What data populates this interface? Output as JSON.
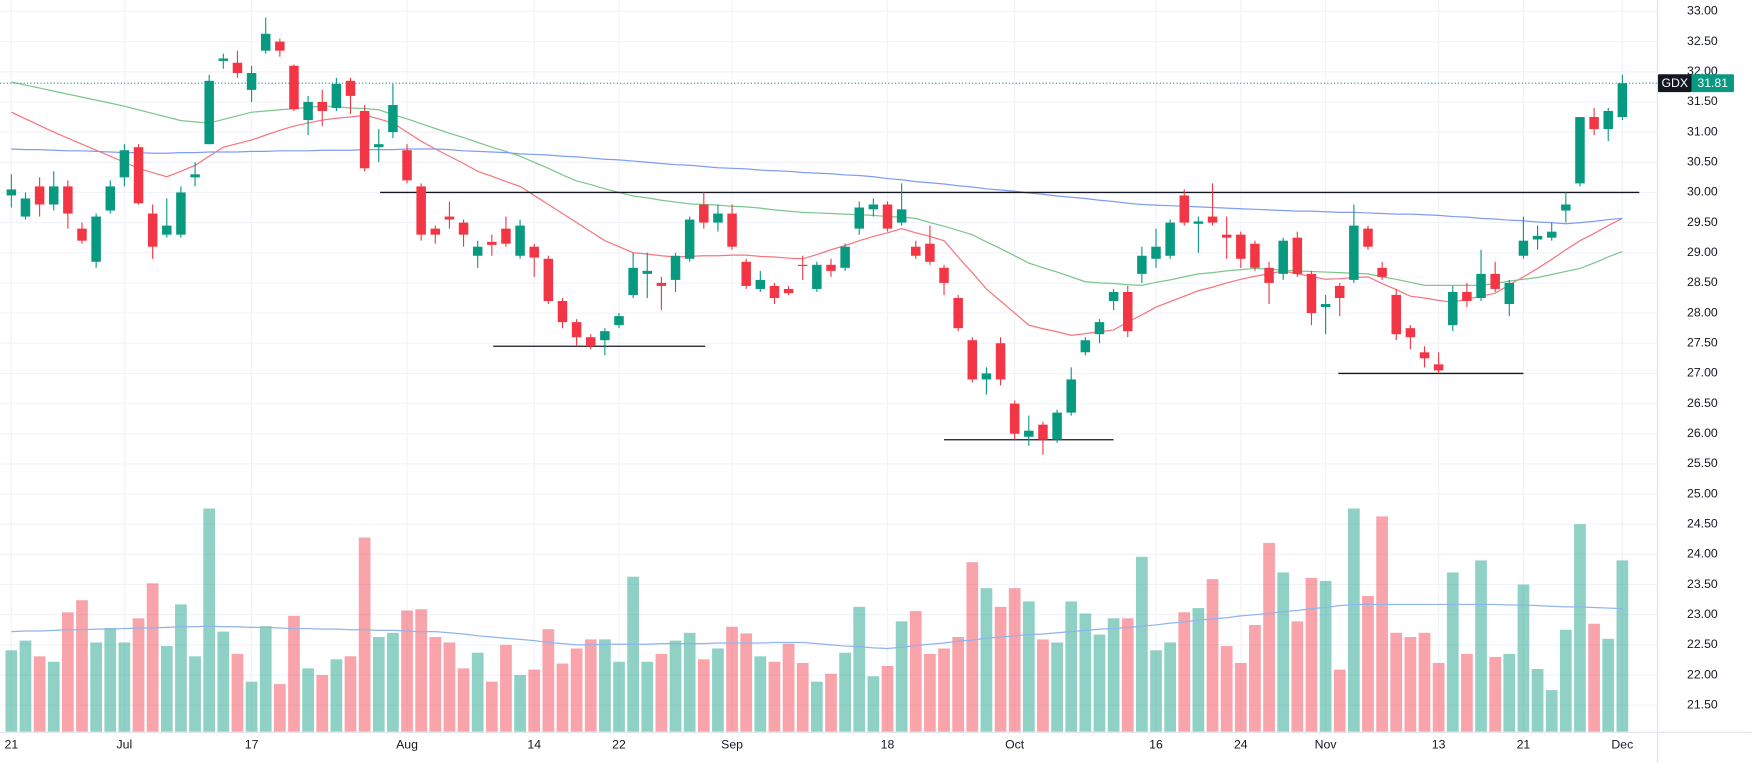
{
  "chart_data": {
    "type": "candlestick",
    "categories": [
      "21",
      null,
      null,
      null,
      null,
      null,
      null,
      null,
      "Jul",
      null,
      null,
      null,
      null,
      null,
      null,
      null,
      null,
      "17",
      null,
      null,
      null,
      null,
      null,
      null,
      null,
      null,
      null,
      null,
      "Aug",
      null,
      null,
      null,
      null,
      null,
      null,
      null,
      null,
      "14",
      null,
      null,
      null,
      null,
      null,
      "22",
      null,
      null,
      null,
      null,
      null,
      null,
      null,
      "Sep",
      null,
      null,
      null,
      null,
      null,
      null,
      null,
      null,
      null,
      null,
      "18",
      null,
      null,
      null,
      null,
      null,
      null,
      null,
      null,
      "Oct",
      null,
      null,
      null,
      null,
      null,
      null,
      null,
      null,
      null,
      "16",
      null,
      null,
      null,
      null,
      null,
      "24",
      null,
      null,
      null,
      null,
      null,
      "Nov",
      null,
      null,
      null,
      null,
      null,
      null,
      null,
      "13",
      null,
      null,
      null,
      null,
      null,
      "21",
      null,
      null,
      null,
      null,
      null,
      null,
      "Dec"
    ],
    "open": [
      29.95,
      29.6,
      30.1,
      29.8,
      30.1,
      29.4,
      28.85,
      29.7,
      30.25,
      30.75,
      29.65,
      29.3,
      29.3,
      30.25,
      30.8,
      32.18,
      32.15,
      31.7,
      32.35,
      32.5,
      32.1,
      31.2,
      31.5,
      31.4,
      31.85,
      31.35,
      30.75,
      31.0,
      30.7,
      30.1,
      29.4,
      29.6,
      29.5,
      28.95,
      29.18,
      29.4,
      28.95,
      29.1,
      28.9,
      28.2,
      27.85,
      27.6,
      27.55,
      27.8,
      28.3,
      28.65,
      28.5,
      28.55,
      28.9,
      29.8,
      29.5,
      29.65,
      28.85,
      28.4,
      28.45,
      28.4,
      28.8,
      28.4,
      28.8,
      28.75,
      29.4,
      29.72,
      29.8,
      29.5,
      29.1,
      29.15,
      28.75,
      28.25,
      27.55,
      26.9,
      27.5,
      26.5,
      25.95,
      26.15,
      25.9,
      26.35,
      27.35,
      27.65,
      28.2,
      28.35,
      28.65,
      28.9,
      28.95,
      29.95,
      29.48,
      29.6,
      29.3,
      29.3,
      29.15,
      28.75,
      28.65,
      29.25,
      28.65,
      28.1,
      28.45,
      28.55,
      29.4,
      28.75,
      28.3,
      27.75,
      27.35,
      27.15,
      27.8,
      28.35,
      28.25,
      28.65,
      28.15,
      28.95,
      29.22,
      29.25,
      29.7,
      30.15,
      31.25,
      31.05,
      31.25
    ],
    "high": [
      30.3,
      30.0,
      30.25,
      30.35,
      30.2,
      29.5,
      29.65,
      30.2,
      30.8,
      30.8,
      29.8,
      29.9,
      30.1,
      30.5,
      31.95,
      32.3,
      32.35,
      32.1,
      32.9,
      32.55,
      32.12,
      31.6,
      31.7,
      31.9,
      31.9,
      31.45,
      31.05,
      31.8,
      30.8,
      30.15,
      29.45,
      29.85,
      29.55,
      29.2,
      29.3,
      29.6,
      29.55,
      29.15,
      28.95,
      28.25,
      27.9,
      27.65,
      27.75,
      28.0,
      29.0,
      29.0,
      28.6,
      29.0,
      29.6,
      30.0,
      29.8,
      29.8,
      28.9,
      28.7,
      28.5,
      28.45,
      28.95,
      28.85,
      28.9,
      29.15,
      29.85,
      29.9,
      29.85,
      30.15,
      29.2,
      29.45,
      28.8,
      28.3,
      27.6,
      27.1,
      27.6,
      26.55,
      26.3,
      26.2,
      26.4,
      27.1,
      27.6,
      27.9,
      28.4,
      28.45,
      29.1,
      29.4,
      29.55,
      30.05,
      29.6,
      30.15,
      29.6,
      29.35,
      29.2,
      28.85,
      29.25,
      29.35,
      28.7,
      28.3,
      28.5,
      29.8,
      29.45,
      28.85,
      28.4,
      27.8,
      27.45,
      27.35,
      28.45,
      28.5,
      29.05,
      28.85,
      28.55,
      29.6,
      29.45,
      29.5,
      30.0,
      31.25,
      31.4,
      31.4,
      31.95
    ],
    "low": [
      29.75,
      29.55,
      29.6,
      29.7,
      29.4,
      29.15,
      28.75,
      29.65,
      30.1,
      29.8,
      28.9,
      29.25,
      29.25,
      30.1,
      30.8,
      32.05,
      31.9,
      31.5,
      32.3,
      32.25,
      31.35,
      30.95,
      31.1,
      31.35,
      31.3,
      30.35,
      30.5,
      30.9,
      30.15,
      29.2,
      29.15,
      29.4,
      29.1,
      28.75,
      28.95,
      29.1,
      28.9,
      28.6,
      28.15,
      27.75,
      27.45,
      27.4,
      27.3,
      27.75,
      28.25,
      28.25,
      28.05,
      28.35,
      28.85,
      29.4,
      29.35,
      29.05,
      28.4,
      28.35,
      28.15,
      28.3,
      28.55,
      28.35,
      28.6,
      28.7,
      29.3,
      29.6,
      29.35,
      29.45,
      28.9,
      28.8,
      28.3,
      27.7,
      26.85,
      26.65,
      26.8,
      25.9,
      25.8,
      25.65,
      25.85,
      26.3,
      27.3,
      27.5,
      28.05,
      27.6,
      28.5,
      28.75,
      28.9,
      29.45,
      29.0,
      29.45,
      28.9,
      28.75,
      28.7,
      28.15,
      28.55,
      28.6,
      27.8,
      27.65,
      27.95,
      28.5,
      29.05,
      28.55,
      27.55,
      27.4,
      27.1,
      27.0,
      27.7,
      28.1,
      28.2,
      28.35,
      27.95,
      28.9,
      29.05,
      29.2,
      29.5,
      30.1,
      30.95,
      30.85,
      31.2
    ],
    "close": [
      30.05,
      29.9,
      29.8,
      30.1,
      29.65,
      29.2,
      29.6,
      30.1,
      30.7,
      29.82,
      29.1,
      29.45,
      30.0,
      30.3,
      31.85,
      32.22,
      31.98,
      31.98,
      32.63,
      32.35,
      31.38,
      31.5,
      31.35,
      31.8,
      31.6,
      30.4,
      30.8,
      31.45,
      30.2,
      29.3,
      29.3,
      29.55,
      29.3,
      29.1,
      29.13,
      29.15,
      29.45,
      28.92,
      28.2,
      27.85,
      27.6,
      27.45,
      27.7,
      27.95,
      28.75,
      28.7,
      28.45,
      28.95,
      29.55,
      29.5,
      29.65,
      29.1,
      28.45,
      28.55,
      28.25,
      28.33,
      28.78,
      28.8,
      28.7,
      29.1,
      29.75,
      29.8,
      29.4,
      29.72,
      28.95,
      28.85,
      28.5,
      27.75,
      26.9,
      27.0,
      26.9,
      26.0,
      26.05,
      25.9,
      26.35,
      26.9,
      27.55,
      27.85,
      28.35,
      27.7,
      28.95,
      29.1,
      29.5,
      29.5,
      29.52,
      29.5,
      29.25,
      28.9,
      28.75,
      28.5,
      29.2,
      28.65,
      28.0,
      28.15,
      28.25,
      29.45,
      29.1,
      28.6,
      27.65,
      27.6,
      27.25,
      27.05,
      28.35,
      28.2,
      28.65,
      28.4,
      28.5,
      29.2,
      29.28,
      29.35,
      29.8,
      31.25,
      31.05,
      31.35,
      31.81
    ],
    "volume": [
      22.41,
      22.57,
      22.31,
      22.22,
      23.04,
      23.24,
      22.54,
      22.78,
      22.54,
      22.94,
      23.52,
      22.48,
      23.17,
      22.31,
      24.76,
      22.72,
      22.35,
      21.89,
      22.81,
      21.85,
      22.98,
      22.11,
      22.0,
      22.26,
      22.31,
      24.28,
      22.63,
      22.7,
      23.07,
      23.09,
      22.63,
      22.54,
      22.11,
      22.37,
      21.89,
      22.5,
      22.0,
      22.09,
      22.76,
      22.19,
      22.44,
      22.59,
      22.59,
      22.22,
      23.63,
      22.22,
      22.35,
      22.57,
      22.7,
      22.26,
      22.44,
      22.8,
      22.69,
      22.31,
      22.22,
      22.52,
      22.2,
      21.89,
      22.02,
      22.37,
      23.13,
      21.98,
      22.15,
      22.89,
      23.06,
      22.35,
      22.44,
      22.63,
      23.87,
      23.44,
      23.13,
      23.44,
      23.22,
      22.59,
      22.54,
      23.22,
      23.02,
      22.67,
      22.94,
      22.94,
      23.96,
      22.41,
      22.54,
      23.04,
      23.11,
      23.59,
      22.48,
      22.2,
      22.83,
      24.19,
      23.7,
      22.89,
      23.61,
      23.56,
      22.09,
      24.76,
      23.31,
      24.63,
      22.7,
      22.63,
      22.7,
      22.2,
      23.7,
      22.35,
      23.9,
      22.3,
      22.35,
      23.5,
      22.1,
      21.75,
      22.75,
      24.5,
      22.85,
      22.6,
      23.9
    ],
    "series": [
      {
        "color": "#f7767e",
        "values": [
          31.33,
          31.22,
          31.11,
          31.0,
          30.9,
          30.8,
          30.7,
          30.6,
          30.5,
          30.4,
          30.33,
          30.26,
          30.35,
          30.45,
          30.6,
          30.75,
          30.81,
          30.87,
          30.95,
          31.03,
          31.1,
          31.15,
          31.2,
          31.23,
          31.25,
          31.28,
          31.22,
          31.15,
          31.0,
          30.85,
          30.72,
          30.6,
          30.48,
          30.35,
          30.27,
          30.18,
          30.1,
          29.95,
          29.8,
          29.65,
          29.5,
          29.35,
          29.2,
          29.1,
          29.0,
          28.98,
          28.95,
          28.93,
          28.94,
          28.95,
          28.95,
          28.96,
          28.96,
          28.94,
          28.93,
          28.91,
          28.9,
          28.97,
          29.05,
          29.12,
          29.2,
          29.27,
          29.33,
          29.4,
          29.33,
          29.27,
          29.2,
          28.93,
          28.67,
          28.4,
          28.2,
          28.0,
          27.8,
          27.74,
          27.69,
          27.63,
          27.66,
          27.69,
          27.72,
          27.85,
          27.97,
          28.1,
          28.19,
          28.28,
          28.37,
          28.43,
          28.5,
          28.56,
          28.61,
          28.65,
          28.7,
          28.65,
          28.61,
          28.56,
          28.57,
          28.59,
          28.6,
          28.49,
          28.39,
          28.28,
          28.25,
          28.21,
          28.18,
          28.23,
          28.28,
          28.33,
          28.47,
          28.6,
          28.74,
          28.89,
          29.05,
          29.2,
          29.32,
          29.45,
          29.57
        ]
      },
      {
        "color": "#7bc68a",
        "values": [
          31.83,
          31.78,
          31.73,
          31.68,
          31.63,
          31.58,
          31.53,
          31.48,
          31.43,
          31.37,
          31.31,
          31.25,
          31.19,
          31.17,
          31.15,
          31.21,
          31.27,
          31.33,
          31.35,
          31.37,
          31.39,
          31.41,
          31.43,
          31.42,
          31.4,
          31.39,
          31.37,
          31.29,
          31.22,
          31.14,
          31.06,
          30.98,
          30.91,
          30.83,
          30.75,
          30.68,
          30.6,
          30.5,
          30.4,
          30.29,
          30.19,
          30.13,
          30.06,
          30.0,
          29.94,
          29.91,
          29.87,
          29.84,
          29.81,
          29.8,
          29.79,
          29.77,
          29.76,
          29.74,
          29.71,
          29.69,
          29.67,
          29.66,
          29.65,
          29.64,
          29.63,
          29.62,
          29.6,
          29.59,
          29.57,
          29.5,
          29.44,
          29.37,
          29.3,
          29.18,
          29.07,
          28.95,
          28.83,
          28.75,
          28.68,
          28.6,
          28.52,
          28.5,
          28.49,
          28.47,
          28.46,
          28.51,
          28.55,
          28.6,
          28.65,
          28.67,
          28.7,
          28.72,
          28.74,
          28.73,
          28.71,
          28.7,
          28.69,
          28.68,
          28.67,
          28.66,
          28.65,
          28.6,
          28.56,
          28.51,
          28.46,
          28.46,
          28.46,
          28.46,
          28.46,
          28.49,
          28.53,
          28.56,
          28.59,
          28.64,
          28.69,
          28.74,
          28.83,
          28.93,
          29.02
        ]
      },
      {
        "color": "#7f9cf5",
        "values": [
          30.72,
          30.71,
          30.71,
          30.7,
          30.69,
          30.69,
          30.68,
          30.67,
          30.66,
          30.66,
          30.65,
          30.65,
          30.66,
          30.66,
          30.67,
          30.67,
          30.67,
          30.68,
          30.68,
          30.69,
          30.69,
          30.69,
          30.7,
          30.7,
          30.7,
          30.71,
          30.71,
          30.71,
          30.72,
          30.72,
          30.72,
          30.71,
          30.69,
          30.68,
          30.67,
          30.66,
          30.64,
          30.63,
          30.62,
          30.6,
          30.59,
          30.57,
          30.55,
          30.54,
          30.52,
          30.5,
          30.48,
          30.46,
          30.45,
          30.43,
          30.41,
          30.4,
          30.39,
          30.37,
          30.36,
          30.35,
          30.33,
          30.32,
          30.31,
          30.29,
          30.28,
          30.26,
          30.23,
          30.21,
          30.18,
          30.16,
          30.14,
          30.11,
          30.09,
          30.06,
          30.04,
          30.02,
          29.99,
          29.97,
          29.94,
          29.92,
          29.9,
          29.87,
          29.85,
          29.82,
          29.8,
          29.79,
          29.78,
          29.77,
          29.76,
          29.75,
          29.74,
          29.73,
          29.72,
          29.71,
          29.7,
          29.69,
          29.69,
          29.68,
          29.67,
          29.67,
          29.66,
          29.65,
          29.64,
          29.64,
          29.63,
          29.62,
          29.6,
          29.59,
          29.57,
          29.56,
          29.54,
          29.53,
          29.51,
          29.5,
          29.48,
          29.5,
          29.52,
          29.55,
          29.57
        ]
      },
      {
        "color": "#8fb3ec",
        "values": [
          22.72,
          22.73,
          22.73,
          22.74,
          22.75,
          22.75,
          22.76,
          22.76,
          22.77,
          22.78,
          22.78,
          22.79,
          22.8,
          22.8,
          22.81,
          22.8,
          22.8,
          22.79,
          22.79,
          22.78,
          22.77,
          22.77,
          22.76,
          22.76,
          22.75,
          22.75,
          22.74,
          22.74,
          22.73,
          22.72,
          22.72,
          22.7,
          22.68,
          22.65,
          22.63,
          22.61,
          22.59,
          22.57,
          22.54,
          22.52,
          22.5,
          22.5,
          22.51,
          22.51,
          22.51,
          22.51,
          22.52,
          22.52,
          22.52,
          22.52,
          22.53,
          22.53,
          22.53,
          22.53,
          22.54,
          22.54,
          22.54,
          22.52,
          22.5,
          22.48,
          22.47,
          22.45,
          22.44,
          22.46,
          22.49,
          22.51,
          22.53,
          22.56,
          22.58,
          22.61,
          22.63,
          22.65,
          22.67,
          22.68,
          22.7,
          22.72,
          22.74,
          22.76,
          22.77,
          22.79,
          22.81,
          22.83,
          22.86,
          22.88,
          22.91,
          22.93,
          22.95,
          22.98,
          23.0,
          23.02,
          23.05,
          23.07,
          23.1,
          23.12,
          23.15,
          23.17,
          23.17,
          23.17,
          23.17,
          23.17,
          23.17,
          23.17,
          23.17,
          23.17,
          23.17,
          23.17,
          23.16,
          23.16,
          23.15,
          23.14,
          23.13,
          23.13,
          23.12,
          23.11,
          23.1
        ]
      }
    ],
    "levels": [
      30.0,
      27.45,
      25.9,
      27.0
    ],
    "last_price": {
      "symbol": "GDX",
      "value": 31.81
    },
    "up_color": "#089981",
    "down_color": "#f23645",
    "ylim": [
      21.06,
      33.19
    ],
    "yticks": [
      {
        "value": 21.5,
        "label": "21.50"
      },
      {
        "value": 22,
        "label": "22.00"
      },
      {
        "value": 22.5,
        "label": "22.50"
      },
      {
        "value": 23,
        "label": "23.00"
      },
      {
        "value": 23.5,
        "label": "23.50"
      },
      {
        "value": 24,
        "label": "24.00"
      },
      {
        "value": 24.5,
        "label": "24.50"
      },
      {
        "value": 25,
        "label": "25.00"
      },
      {
        "value": 25.5,
        "label": "25.50"
      },
      {
        "value": 26,
        "label": "26.00"
      },
      {
        "value": 26.5,
        "label": "26.50"
      },
      {
        "value": 27,
        "label": "27.00"
      },
      {
        "value": 27.5,
        "label": "27.50"
      },
      {
        "value": 28,
        "label": "28.00"
      },
      {
        "value": 28.5,
        "label": "28.50"
      },
      {
        "value": 29,
        "label": "29.00"
      },
      {
        "value": 29.5,
        "label": "29.50"
      },
      {
        "value": 30,
        "label": "30.00"
      },
      {
        "value": 30.5,
        "label": "30.50"
      },
      {
        "value": 31,
        "label": "31.00"
      },
      {
        "value": 31.5,
        "label": "31.50"
      },
      {
        "value": 32,
        "label": "32.00"
      },
      {
        "value": 32.5,
        "label": "32.50"
      },
      {
        "value": 33,
        "label": "33.00"
      }
    ],
    "grid": true
  }
}
